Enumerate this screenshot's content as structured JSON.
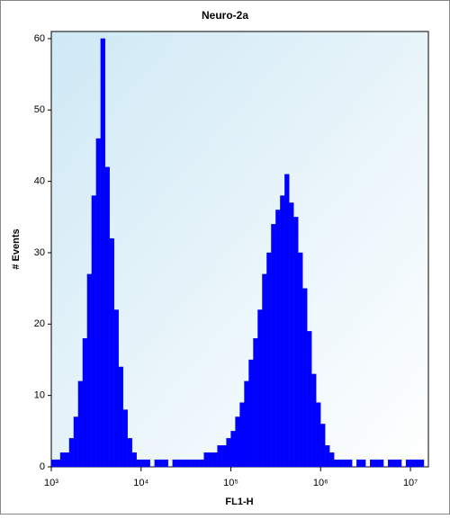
{
  "chart_data": {
    "type": "histogram",
    "title": "Neuro-2a",
    "x_label": "FL1-H",
    "y_label": "# Events",
    "x_scale": "log",
    "color": "#0000ff",
    "xlim": [
      1000,
      15848932
    ],
    "ylim": [
      0,
      61
    ],
    "xticks": [
      {
        "value": 1000,
        "label": "10³"
      },
      {
        "value": 10000,
        "label": "10⁴"
      },
      {
        "value": 100000,
        "label": "10⁵"
      },
      {
        "value": 1000000,
        "label": "10⁶"
      },
      {
        "value": 10000000,
        "label": "10⁷"
      }
    ],
    "yticks": [
      0,
      10,
      20,
      30,
      40,
      50,
      60
    ],
    "bins": [
      1000,
      1122,
      1259,
      1413,
      1585,
      1778,
      1995,
      2239,
      2512,
      2818,
      3162,
      3548,
      3981,
      4467,
      5012,
      5623,
      6310,
      7079,
      7943,
      8913,
      10000,
      11220,
      12589,
      14125,
      15849,
      17783,
      19953,
      22387,
      25119,
      28184,
      31623,
      35481,
      39811,
      44668,
      50119,
      56234,
      63096,
      70795,
      79433,
      89125,
      100000,
      112202,
      125893,
      141254,
      158489,
      177828,
      199526,
      223872,
      251189,
      281838,
      316228,
      354813,
      398107,
      446684,
      501187,
      562341,
      630957,
      707946,
      794328,
      891251,
      1000000,
      1122018,
      1258925,
      1412538,
      1584893,
      1778279,
      1995262,
      2238721,
      2511886,
      2818383,
      3162278,
      3548134,
      3981072,
      4466836,
      5011872,
      5623413,
      6309573,
      7079458,
      7943282,
      8912509,
      10000000,
      11220185,
      12589254,
      14125375,
      15848932
    ],
    "counts": [
      1,
      1,
      2,
      2,
      4,
      7,
      12,
      18,
      27,
      38,
      46,
      60,
      42,
      32,
      22,
      14,
      8,
      4,
      2,
      1,
      1,
      1,
      0,
      1,
      1,
      1,
      0,
      1,
      1,
      1,
      1,
      1,
      1,
      1,
      2,
      2,
      2,
      3,
      3,
      4,
      5,
      7,
      9,
      12,
      15,
      18,
      22,
      27,
      30,
      34,
      36,
      38,
      41,
      37,
      35,
      30,
      25,
      19,
      13,
      9,
      6,
      3,
      2,
      1,
      1,
      1,
      1,
      0,
      1,
      1,
      0,
      1,
      1,
      1,
      0,
      1,
      1,
      1,
      0,
      1,
      1,
      1,
      1,
      0
    ]
  }
}
